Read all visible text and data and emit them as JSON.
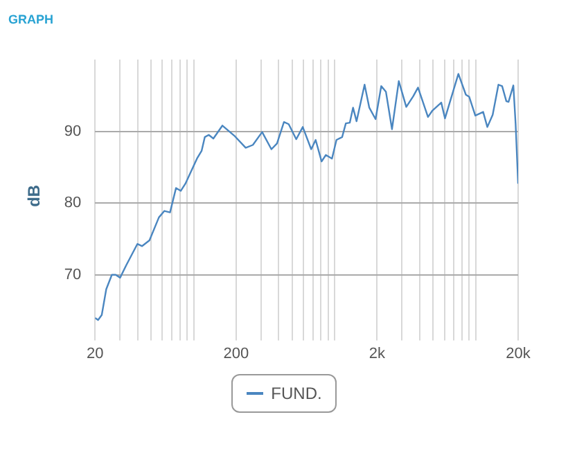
{
  "chart_data": {
    "type": "line",
    "title": "GRAPH",
    "ylabel": "dB",
    "log": "x",
    "grid": true,
    "legend": "bottom",
    "marker": "none",
    "line_style": "solid",
    "xlim": [
      20,
      20000
    ],
    "xticks": [
      {
        "value": 20,
        "label": "20"
      },
      {
        "value": 30,
        "label": null
      },
      {
        "value": 40,
        "label": null
      },
      {
        "value": 50,
        "label": null
      },
      {
        "value": 60,
        "label": null
      },
      {
        "value": 70,
        "label": null
      },
      {
        "value": 80,
        "label": null
      },
      {
        "value": 90,
        "label": null
      },
      {
        "value": 100,
        "label": null
      },
      {
        "value": 200,
        "label": "200"
      },
      {
        "value": 300,
        "label": null
      },
      {
        "value": 400,
        "label": null
      },
      {
        "value": 500,
        "label": null
      },
      {
        "value": 600,
        "label": null
      },
      {
        "value": 700,
        "label": null
      },
      {
        "value": 800,
        "label": null
      },
      {
        "value": 900,
        "label": null
      },
      {
        "value": 1000,
        "label": null
      },
      {
        "value": 2000,
        "label": "2k"
      },
      {
        "value": 3000,
        "label": null
      },
      {
        "value": 4000,
        "label": null
      },
      {
        "value": 5000,
        "label": null
      },
      {
        "value": 6000,
        "label": null
      },
      {
        "value": 7000,
        "label": null
      },
      {
        "value": 8000,
        "label": null
      },
      {
        "value": 9000,
        "label": null
      },
      {
        "value": 10000,
        "label": null
      },
      {
        "value": 20000,
        "label": "20k"
      }
    ],
    "ylim": [
      62,
      100
    ],
    "yticks": [
      70,
      80,
      90
    ],
    "series": [
      {
        "name": "FUND.",
        "color": "#4a86c0",
        "x": [
          20,
          21,
          22.3,
          24,
          26.3,
          28,
          30.1,
          33.2,
          39.9,
          43.1,
          48.6,
          56.7,
          62,
          68,
          75,
          81,
          87.4,
          105.6,
          114,
          120,
          128,
          138,
          160,
          194,
          234,
          263,
          306,
          356,
          390,
          437,
          472,
          534,
          594,
          682,
          733,
          808,
          866,
          957,
          1030,
          1130,
          1200,
          1280,
          1350,
          1430,
          1630,
          1760,
          1950,
          2140,
          2310,
          2550,
          2850,
          3220,
          3610,
          3900,
          4590,
          4940,
          5700,
          6060,
          7540,
          8520,
          9000,
          9940,
          11300,
          12100,
          13200,
          14500,
          15400,
          16500,
          17100,
          18500,
          19200,
          20000
        ],
        "values": [
          64,
          63.7,
          64.4,
          68,
          70,
          70,
          69.6,
          71.3,
          74.3,
          74,
          74.8,
          78,
          78.9,
          78.7,
          82.1,
          81.7,
          82.7,
          86.2,
          87.3,
          89.2,
          89.5,
          89,
          90.8,
          89.4,
          87.7,
          88.1,
          89.9,
          87.5,
          88.3,
          91.3,
          91,
          88.9,
          90.6,
          87.5,
          88.8,
          85.8,
          86.7,
          86.2,
          88.8,
          89.2,
          91.1,
          91.2,
          93.3,
          91.4,
          96.5,
          93.3,
          91.7,
          96.3,
          95.5,
          90.3,
          97,
          93.4,
          94.9,
          96.1,
          92,
          92.9,
          94,
          91.8,
          98,
          95.1,
          94.8,
          92.2,
          92.7,
          90.6,
          92.3,
          96.5,
          96.3,
          94.2,
          94.1,
          96.4,
          91,
          82.7
        ]
      }
    ]
  }
}
